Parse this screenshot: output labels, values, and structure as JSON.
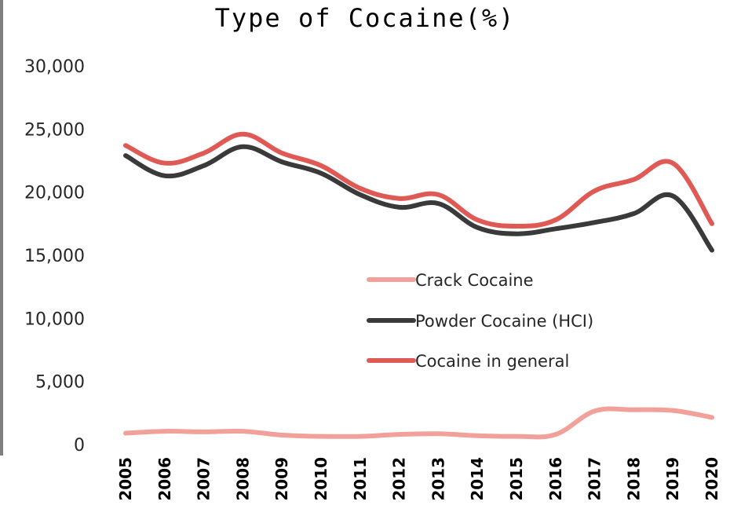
{
  "chart_data": {
    "type": "line",
    "title": "Type of Cocaine(%)",
    "xlabel": "",
    "ylabel": "",
    "x": [
      "2005",
      "2006",
      "2007",
      "2008",
      "2009",
      "2010",
      "2011",
      "2012",
      "2013",
      "2014",
      "2015",
      "2016",
      "2017",
      "2018",
      "2019",
      "2020"
    ],
    "ylim": [
      0,
      30000
    ],
    "yticks": [
      0,
      5000,
      10000,
      15000,
      20000,
      25000,
      30000
    ],
    "ytick_labels": [
      "0",
      "5,000",
      "10,000",
      "15,000",
      "20,000",
      "25,000",
      "30,000"
    ],
    "grid": false,
    "legend_position": "center-right",
    "series": [
      {
        "name": "Crack Cocaine",
        "color": "#f2a09a",
        "values": [
          900,
          1050,
          1000,
          1050,
          750,
          650,
          650,
          800,
          850,
          700,
          650,
          800,
          2650,
          2750,
          2700,
          2150
        ]
      },
      {
        "name": "Powder Cocaine (HCI)",
        "color": "#3a3a3a",
        "values": [
          22900,
          21300,
          22100,
          23600,
          22400,
          21500,
          19800,
          18800,
          19100,
          17200,
          16700,
          17100,
          17600,
          18300,
          19700,
          15400
        ]
      },
      {
        "name": "Cocaine in general",
        "color": "#e05a55",
        "values": [
          23700,
          22300,
          23100,
          24600,
          23100,
          22100,
          20300,
          19500,
          19800,
          17800,
          17300,
          17800,
          20100,
          21000,
          22300,
          17500
        ]
      }
    ]
  }
}
